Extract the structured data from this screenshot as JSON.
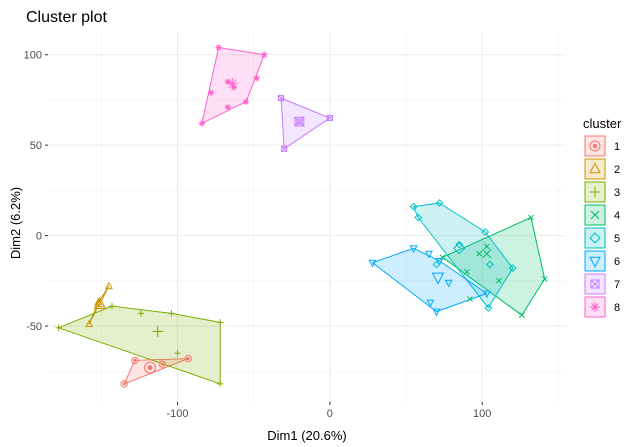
{
  "chart_data": {
    "type": "scatter",
    "title": "Cluster plot",
    "xlabel": "Dim1 (20.6%)",
    "ylabel": "Dim2 (6.2%)",
    "xlim": [
      -185,
      155
    ],
    "ylim": [
      -92,
      112
    ],
    "x_ticks": [
      -100,
      0,
      100
    ],
    "y_ticks": [
      -50,
      0,
      50,
      100
    ],
    "x_tick_labels": [
      "-100",
      "0",
      "100"
    ],
    "y_tick_labels": [
      "-50",
      "0",
      "50",
      "100"
    ],
    "grid": true,
    "legend": {
      "title": "cluster",
      "position": "right",
      "items": [
        "1",
        "2",
        "3",
        "4",
        "5",
        "6",
        "7",
        "8"
      ]
    },
    "series": [
      {
        "name": "1",
        "color": "#F8766D",
        "symbol": "circle-dot",
        "points": [
          [
            -135,
            -82
          ],
          [
            -128,
            -69
          ],
          [
            -110,
            -71
          ],
          [
            -93,
            -68
          ]
        ],
        "hull": [
          [
            -135,
            -82
          ],
          [
            -93,
            -68
          ],
          [
            -128,
            -69
          ]
        ],
        "center": [
          -118,
          -73
        ]
      },
      {
        "name": "2",
        "color": "#CD9600",
        "symbol": "triangle",
        "points": [
          [
            -145,
            -28
          ],
          [
            -152,
            -37
          ],
          [
            -158,
            -49
          ],
          [
            -150,
            -38
          ]
        ],
        "hull": [
          [
            -145,
            -28
          ],
          [
            -158,
            -49
          ],
          [
            -152,
            -37
          ]
        ],
        "center": [
          -151,
          -38
        ]
      },
      {
        "name": "3",
        "color": "#7CAE00",
        "symbol": "plus",
        "points": [
          [
            -178,
            -51
          ],
          [
            -143,
            -39
          ],
          [
            -124,
            -43
          ],
          [
            -104,
            -43
          ],
          [
            -72,
            -48
          ],
          [
            -72,
            -82
          ],
          [
            -100,
            -65
          ],
          [
            -113,
            -53
          ]
        ],
        "hull": [
          [
            -178,
            -51
          ],
          [
            -143,
            -39
          ],
          [
            -104,
            -43
          ],
          [
            -72,
            -48
          ],
          [
            -72,
            -82
          ]
        ],
        "center": [
          -113,
          -53
        ]
      },
      {
        "name": "4",
        "color": "#00BE67",
        "symbol": "cross",
        "points": [
          [
            74,
            -12
          ],
          [
            90,
            -20
          ],
          [
            98,
            -10
          ],
          [
            103,
            -6
          ],
          [
            111,
            -25
          ],
          [
            132,
            10
          ],
          [
            141,
            -24
          ],
          [
            126,
            -44
          ],
          [
            92,
            -35
          ]
        ],
        "hull": [
          [
            74,
            -12
          ],
          [
            132,
            10
          ],
          [
            141,
            -24
          ],
          [
            126,
            -44
          ]
        ],
        "center": [
          103,
          -10
        ]
      },
      {
        "name": "5",
        "color": "#00BFC4",
        "symbol": "diamond",
        "points": [
          [
            55,
            16
          ],
          [
            58,
            10
          ],
          [
            72,
            18
          ],
          [
            85,
            -5
          ],
          [
            102,
            2
          ],
          [
            105,
            -16
          ],
          [
            120,
            -18
          ],
          [
            104,
            -40
          ],
          [
            70,
            -16
          ]
        ],
        "hull": [
          [
            55,
            16
          ],
          [
            72,
            18
          ],
          [
            102,
            2
          ],
          [
            120,
            -18
          ],
          [
            104,
            -40
          ],
          [
            58,
            10
          ]
        ],
        "center": [
          85,
          -7
        ]
      },
      {
        "name": "6",
        "color": "#00A9FF",
        "symbol": "triangle-down",
        "points": [
          [
            28,
            -15
          ],
          [
            55,
            -7
          ],
          [
            65,
            -10
          ],
          [
            72,
            -14
          ],
          [
            78,
            -26
          ],
          [
            70,
            -42
          ],
          [
            66,
            -37
          ],
          [
            103,
            -32
          ]
        ],
        "hull": [
          [
            28,
            -15
          ],
          [
            55,
            -7
          ],
          [
            72,
            -14
          ],
          [
            103,
            -32
          ],
          [
            70,
            -42
          ]
        ],
        "center": [
          71,
          -23
        ]
      },
      {
        "name": "7",
        "color": "#C77CFF",
        "symbol": "square-cross",
        "points": [
          [
            -32,
            76
          ],
          [
            0,
            65
          ],
          [
            -30,
            48
          ],
          [
            -20,
            63
          ]
        ],
        "hull": [
          [
            -32,
            76
          ],
          [
            0,
            65
          ],
          [
            -30,
            48
          ]
        ],
        "center": [
          -20,
          63
        ]
      },
      {
        "name": "8",
        "color": "#FF61CC",
        "symbol": "asterisk",
        "points": [
          [
            -73,
            104
          ],
          [
            -43,
            100
          ],
          [
            -55,
            74
          ],
          [
            -84,
            62
          ],
          [
            -78,
            79
          ],
          [
            -63,
            82
          ],
          [
            -67,
            71
          ],
          [
            -48,
            87
          ],
          [
            -67,
            85
          ]
        ],
        "hull": [
          [
            -73,
            104
          ],
          [
            -43,
            100
          ],
          [
            -55,
            74
          ],
          [
            -84,
            62
          ]
        ],
        "center": [
          -64,
          84
        ]
      }
    ]
  }
}
